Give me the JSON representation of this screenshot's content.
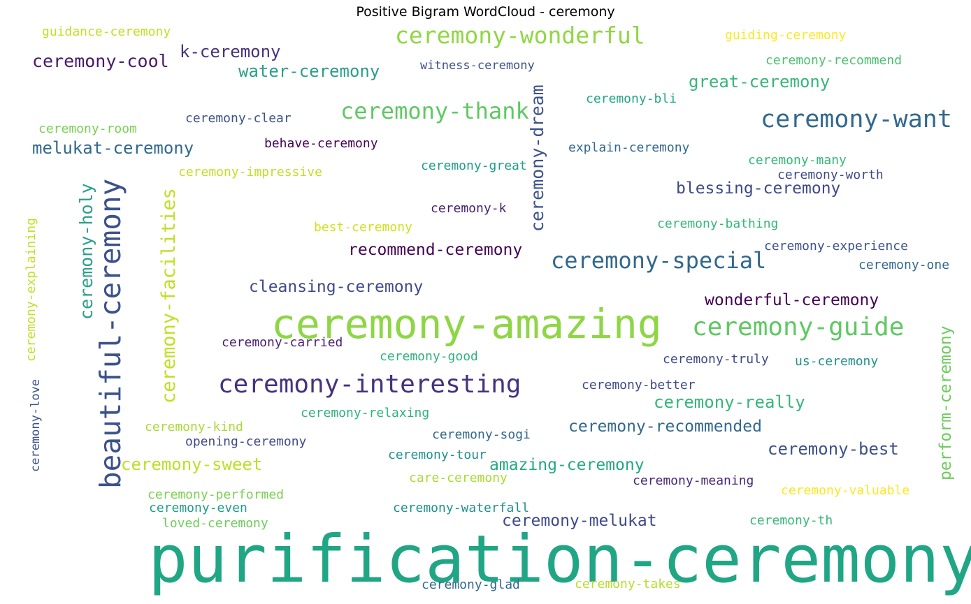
{
  "chart_data": {
    "type": "wordcloud",
    "title": "Positive Bigram WordCloud - ceremony",
    "words": [
      {
        "text": "purification-ceremony",
        "weight": 100,
        "color": "#21a685",
        "orientation": "horizontal"
      },
      {
        "text": "ceremony-amazing",
        "weight": 71,
        "color": "#8ed645",
        "orientation": "horizontal"
      },
      {
        "text": "beautiful-ceremony",
        "weight": 54,
        "color": "#3b528b",
        "orientation": "vertical"
      },
      {
        "text": "ceremony-interesting",
        "weight": 46,
        "color": "#46327e",
        "orientation": "horizontal"
      },
      {
        "text": "ceremony-guide",
        "weight": 45,
        "color": "#5ec962",
        "orientation": "horizontal"
      },
      {
        "text": "ceremony-want",
        "weight": 44,
        "color": "#31688e",
        "orientation": "horizontal"
      },
      {
        "text": "ceremony-wonderful",
        "weight": 42,
        "color": "#90d743",
        "orientation": "horizontal"
      },
      {
        "text": "ceremony-thank",
        "weight": 41,
        "color": "#5ec962",
        "orientation": "horizontal"
      },
      {
        "text": "ceremony-special",
        "weight": 41,
        "color": "#31688e",
        "orientation": "horizontal"
      },
      {
        "text": "ceremony-facilities",
        "weight": 38,
        "color": "#c2df23",
        "orientation": "vertical"
      },
      {
        "text": "ceremony-dream",
        "weight": 36,
        "color": "#3b528b",
        "orientation": "vertical"
      },
      {
        "text": "ceremony-holy",
        "weight": 35,
        "color": "#2a9f8a",
        "orientation": "vertical"
      },
      {
        "text": "perform-ceremony",
        "weight": 34,
        "color": "#6ccd5a",
        "orientation": "vertical"
      },
      {
        "text": "ceremony-cool",
        "weight": 34,
        "color": "#48186a",
        "orientation": "horizontal"
      },
      {
        "text": "melukat-ceremony",
        "weight": 33,
        "color": "#31688e",
        "orientation": "horizontal"
      },
      {
        "text": "ceremony-sweet",
        "weight": 33,
        "color": "#bddf26",
        "orientation": "horizontal"
      },
      {
        "text": "great-ceremony",
        "weight": 33,
        "color": "#35b779",
        "orientation": "horizontal"
      },
      {
        "text": "ceremony-really",
        "weight": 32,
        "color": "#35b779",
        "orientation": "horizontal"
      },
      {
        "text": "water-ceremony",
        "weight": 32,
        "color": "#2a9f8a",
        "orientation": "horizontal"
      },
      {
        "text": "ceremony-best",
        "weight": 32,
        "color": "#3b528b",
        "orientation": "horizontal"
      },
      {
        "text": "k-ceremony",
        "weight": 32,
        "color": "#46327e",
        "orientation": "horizontal"
      },
      {
        "text": "cleansing-ceremony",
        "weight": 31,
        "color": "#3e4a89",
        "orientation": "horizontal"
      },
      {
        "text": "recommend-ceremony",
        "weight": 31,
        "color": "#440154",
        "orientation": "horizontal"
      },
      {
        "text": "ceremony-recommended",
        "weight": 31,
        "color": "#31688e",
        "orientation": "horizontal"
      },
      {
        "text": "blessing-ceremony",
        "weight": 31,
        "color": "#3e4a89",
        "orientation": "horizontal"
      },
      {
        "text": "amazing-ceremony",
        "weight": 31,
        "color": "#22a884",
        "orientation": "horizontal"
      },
      {
        "text": "ceremony-melukat",
        "weight": 31,
        "color": "#3e4a89",
        "orientation": "horizontal"
      },
      {
        "text": "wonderful-ceremony",
        "weight": 31,
        "color": "#440154",
        "orientation": "horizontal"
      },
      {
        "text": "ceremony-explaining",
        "weight": 25,
        "color": "#c2df23",
        "orientation": "vertical"
      },
      {
        "text": "ceremony-love",
        "weight": 25,
        "color": "#3b528b",
        "orientation": "vertical"
      },
      {
        "text": "guidance-ceremony",
        "weight": 23,
        "color": "#c2df23",
        "orientation": "horizontal"
      },
      {
        "text": "guiding-ceremony",
        "weight": 23,
        "color": "#fde725",
        "orientation": "horizontal"
      },
      {
        "text": "ceremony-recommend",
        "weight": 23,
        "color": "#4ac16d",
        "orientation": "horizontal"
      },
      {
        "text": "witness-ceremony",
        "weight": 23,
        "color": "#3b528b",
        "orientation": "horizontal"
      },
      {
        "text": "ceremony-bli",
        "weight": 23,
        "color": "#22a884",
        "orientation": "horizontal"
      },
      {
        "text": "ceremony-clear",
        "weight": 23,
        "color": "#3b528b",
        "orientation": "horizontal"
      },
      {
        "text": "ceremony-room",
        "weight": 23,
        "color": "#7ad151",
        "orientation": "horizontal"
      },
      {
        "text": "behave-ceremony",
        "weight": 23,
        "color": "#440154",
        "orientation": "horizontal"
      },
      {
        "text": "explain-ceremony",
        "weight": 23,
        "color": "#31688e",
        "orientation": "horizontal"
      },
      {
        "text": "ceremony-many",
        "weight": 23,
        "color": "#35b779",
        "orientation": "horizontal"
      },
      {
        "text": "ceremony-great",
        "weight": 23,
        "color": "#1f9e89",
        "orientation": "horizontal"
      },
      {
        "text": "ceremony-worth",
        "weight": 23,
        "color": "#3e4a89",
        "orientation": "horizontal"
      },
      {
        "text": "ceremony-impressive",
        "weight": 23,
        "color": "#c2df23",
        "orientation": "horizontal"
      },
      {
        "text": "ceremony-k",
        "weight": 23,
        "color": "#481f70",
        "orientation": "horizontal"
      },
      {
        "text": "ceremony-bathing",
        "weight": 23,
        "color": "#35b779",
        "orientation": "horizontal"
      },
      {
        "text": "best-ceremony",
        "weight": 23,
        "color": "#d0e11c",
        "orientation": "horizontal"
      },
      {
        "text": "ceremony-experience",
        "weight": 23,
        "color": "#3b528b",
        "orientation": "horizontal"
      },
      {
        "text": "ceremony-one",
        "weight": 23,
        "color": "#31688e",
        "orientation": "horizontal"
      },
      {
        "text": "ceremony-carried",
        "weight": 23,
        "color": "#481f70",
        "orientation": "horizontal"
      },
      {
        "text": "ceremony-good",
        "weight": 23,
        "color": "#2eb37c",
        "orientation": "horizontal"
      },
      {
        "text": "ceremony-truly",
        "weight": 23,
        "color": "#3e4a89",
        "orientation": "horizontal"
      },
      {
        "text": "us-ceremony",
        "weight": 23,
        "color": "#21918c",
        "orientation": "horizontal"
      },
      {
        "text": "ceremony-better",
        "weight": 23,
        "color": "#3e4a89",
        "orientation": "horizontal"
      },
      {
        "text": "ceremony-relaxing",
        "weight": 23,
        "color": "#2eb37c",
        "orientation": "horizontal"
      },
      {
        "text": "ceremony-kind",
        "weight": 23,
        "color": "#a8db34",
        "orientation": "horizontal"
      },
      {
        "text": "ceremony-sogi",
        "weight": 23,
        "color": "#31688e",
        "orientation": "horizontal"
      },
      {
        "text": "opening-ceremony",
        "weight": 23,
        "color": "#3e4a89",
        "orientation": "horizontal"
      },
      {
        "text": "ceremony-tour",
        "weight": 23,
        "color": "#21918c",
        "orientation": "horizontal"
      },
      {
        "text": "care-ceremony",
        "weight": 23,
        "color": "#a8db34",
        "orientation": "horizontal"
      },
      {
        "text": "ceremony-meaning",
        "weight": 23,
        "color": "#482878",
        "orientation": "horizontal"
      },
      {
        "text": "ceremony-performed",
        "weight": 23,
        "color": "#7ad151",
        "orientation": "horizontal"
      },
      {
        "text": "ceremony-valuable",
        "weight": 23,
        "color": "#fde725",
        "orientation": "horizontal"
      },
      {
        "text": "ceremony-even",
        "weight": 23,
        "color": "#1f9e89",
        "orientation": "horizontal"
      },
      {
        "text": "ceremony-waterfall",
        "weight": 23,
        "color": "#21918c",
        "orientation": "horizontal"
      },
      {
        "text": "loved-ceremony",
        "weight": 23,
        "color": "#6ccd5a",
        "orientation": "horizontal"
      },
      {
        "text": "ceremony-th",
        "weight": 23,
        "color": "#35b779",
        "orientation": "horizontal"
      },
      {
        "text": "ceremony-glad",
        "weight": 23,
        "color": "#31688e",
        "orientation": "horizontal"
      },
      {
        "text": "ceremony-takes",
        "weight": 23,
        "color": "#b5de2b",
        "orientation": "horizontal"
      }
    ]
  }
}
